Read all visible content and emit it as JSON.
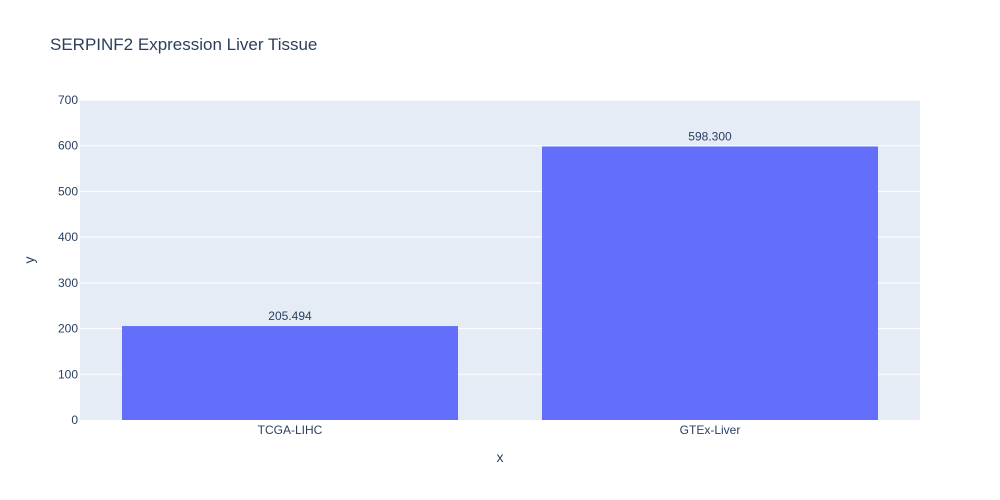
{
  "chart_data": {
    "type": "bar",
    "title": "SERPINF2 Expression Liver Tissue",
    "xlabel": "x",
    "ylabel": "y",
    "categories": [
      "TCGA-LIHC",
      "GTEx-Liver"
    ],
    "values": [
      205.494,
      598.3
    ],
    "value_labels": [
      "205.494",
      "598.300"
    ],
    "ylim": [
      0,
      700
    ],
    "yticks": [
      0,
      100,
      200,
      300,
      400,
      500,
      600,
      700
    ],
    "grid": true,
    "colors": {
      "bar": "#636efa",
      "plot_background": "#e5ecf6",
      "grid": "#ffffff",
      "text": "#2a3f5f"
    }
  }
}
